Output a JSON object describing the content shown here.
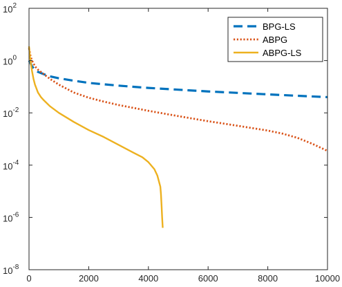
{
  "chart_data": {
    "type": "line",
    "title": "",
    "xlabel": "",
    "ylabel": "",
    "xlim": [
      0,
      10000
    ],
    "ylim": [
      1e-08,
      100
    ],
    "yscale": "log",
    "grid": false,
    "box": true,
    "legend": "top-right",
    "x_ticks": [
      0,
      2000,
      4000,
      6000,
      8000,
      10000
    ],
    "x_tick_labels": [
      "0",
      "2000",
      "4000",
      "6000",
      "8000",
      "10000"
    ],
    "y_ticks": [
      {
        "value": 100,
        "base": "10",
        "exp": "2"
      },
      {
        "value": 1,
        "base": "10",
        "exp": "0"
      },
      {
        "value": 0.01,
        "base": "10",
        "exp": "-2"
      },
      {
        "value": 0.0001,
        "base": "10",
        "exp": "-4"
      },
      {
        "value": 1e-06,
        "base": "10",
        "exp": "-6"
      },
      {
        "value": 1e-08,
        "base": "10",
        "exp": "-8"
      }
    ],
    "series": [
      {
        "name": "BPG-LS",
        "color": "#0072BD",
        "style": "dashed",
        "x": [
          0,
          50,
          100,
          200,
          300,
          500,
          700,
          1000,
          1500,
          2000,
          3000,
          4000,
          5000,
          6000,
          7000,
          8000,
          9000,
          10000
        ],
        "y": [
          1.0,
          0.8,
          0.6,
          0.45,
          0.37,
          0.3,
          0.25,
          0.21,
          0.17,
          0.14,
          0.11,
          0.09,
          0.077,
          0.066,
          0.058,
          0.051,
          0.045,
          0.04
        ]
      },
      {
        "name": "ABPG",
        "color": "#D95319",
        "style": "dotted",
        "x": [
          0,
          50,
          100,
          200,
          300,
          500,
          700,
          1000,
          1500,
          2000,
          2500,
          3000,
          4000,
          5000,
          6000,
          7000,
          8000,
          8500,
          9000,
          9500,
          10000
        ],
        "y": [
          3.0,
          1.5,
          1.0,
          0.6,
          0.45,
          0.3,
          0.2,
          0.12,
          0.06,
          0.038,
          0.027,
          0.02,
          0.012,
          0.0075,
          0.0048,
          0.0032,
          0.0021,
          0.0016,
          0.0011,
          0.00065,
          0.00035
        ]
      },
      {
        "name": "ABPG-LS",
        "color": "#EDB120",
        "style": "solid",
        "x": [
          0,
          30,
          60,
          100,
          150,
          200,
          300,
          400,
          500,
          700,
          1000,
          1500,
          2000,
          2500,
          3000,
          3500,
          3800,
          4000,
          4200,
          4300,
          4400,
          4420,
          4440,
          4460,
          4480
        ],
        "y": [
          3.5,
          1.5,
          0.8,
          0.4,
          0.2,
          0.12,
          0.06,
          0.04,
          0.03,
          0.018,
          0.01,
          0.0045,
          0.0022,
          0.0012,
          0.0006,
          0.0003,
          0.0002,
          0.00013,
          7e-05,
          4e-05,
          1.5e-05,
          8e-06,
          3e-06,
          1e-06,
          4e-07
        ]
      }
    ]
  }
}
